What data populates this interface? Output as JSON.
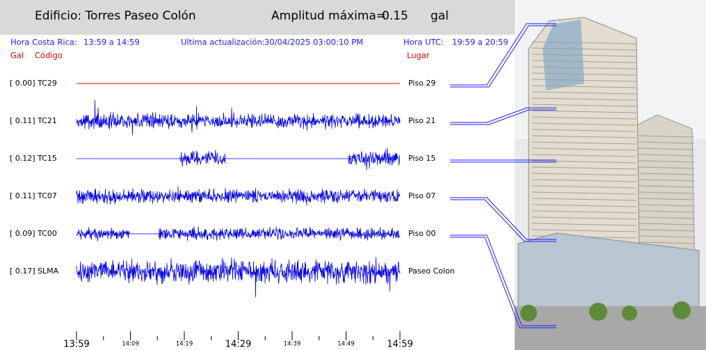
{
  "header": {
    "building": "Edificio: Torres Paseo Colón",
    "max_label": "Amplitud máxima=",
    "max_value": "0.15",
    "max_unit": "gal"
  },
  "info": {
    "local_label": "Hora Costa Rica:",
    "local_range": "13:59 a 14:59",
    "update_label": "Ultima actualización:",
    "update_value": "30/04/2025 03:00:10 PM",
    "utc_label": "Hora UTC:",
    "utc_range": "19:59 a 20:59"
  },
  "columns": {
    "gal": "Gal",
    "code": "Código",
    "place": "Lugar"
  },
  "channels": [
    {
      "label": "[  0.00] TC29",
      "place": "Piso 29"
    },
    {
      "label": "[  0.11] TC21",
      "place": "Piso 21"
    },
    {
      "label": "[  0.12] TC15",
      "place": "Piso 15"
    },
    {
      "label": "[  0.11] TC07",
      "place": "Piso 07"
    },
    {
      "label": "[  0.09] TC00",
      "place": "Piso 00"
    },
    {
      "label": "[  0.17] SLMA",
      "place": "Paseo Colon"
    }
  ],
  "time_axis": [
    "13:59",
    "14:09",
    "14:19",
    "14:29",
    "14:39",
    "14:49",
    "14:59"
  ]
}
